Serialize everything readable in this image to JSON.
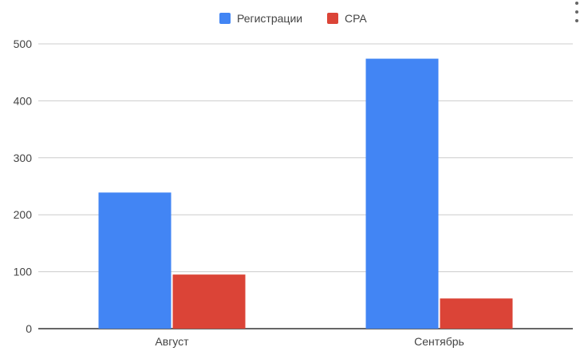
{
  "colors": {
    "series_1": "#4285f4",
    "series_2": "#db4437",
    "grid": "#cccccc",
    "baseline": "#333333",
    "text": "#444444"
  },
  "menu": {
    "icon": "more-vert-icon"
  },
  "chart_data": {
    "type": "bar",
    "categories": [
      "Август",
      "Сентябрь"
    ],
    "series": [
      {
        "name": "Регистрации",
        "values": [
          239,
          474
        ]
      },
      {
        "name": "CPA",
        "values": [
          95,
          53
        ]
      }
    ],
    "ylim": [
      0,
      500
    ],
    "yticks": [
      0,
      100,
      200,
      300,
      400,
      500
    ],
    "grid": true,
    "legend_position": "top-center"
  }
}
